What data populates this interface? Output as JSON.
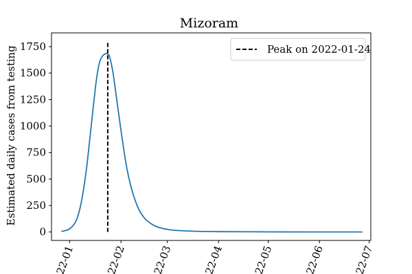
{
  "chart_data": {
    "type": "line",
    "title": "Mizoram",
    "xlabel": "",
    "ylabel": "Estimated daily cases from testing",
    "x_tick_labels": [
      "22-01",
      "22-02",
      "22-03",
      "22-04",
      "22-05",
      "22-06",
      "22-07"
    ],
    "x_tick_dates": [
      "2022-01-01",
      "2022-02-01",
      "2022-03-01",
      "2022-04-01",
      "2022-05-01",
      "2022-06-01",
      "2022-07-01"
    ],
    "y_ticks": [
      0,
      250,
      500,
      750,
      1000,
      1250,
      1500,
      1750
    ],
    "xlim": [
      "2021-12-21",
      "2022-07-02"
    ],
    "ylim": [
      -80,
      1880
    ],
    "grid": false,
    "legend": {
      "position": "top-right",
      "entries": [
        "Peak on 2022-01-24"
      ]
    },
    "series": [
      {
        "color": "#1f77b4",
        "x": [
          "2021-12-27",
          "2022-01-01",
          "2022-01-05",
          "2022-01-08",
          "2022-01-11",
          "2022-01-14",
          "2022-01-17",
          "2022-01-19",
          "2022-01-21",
          "2022-01-23",
          "2022-01-24",
          "2022-01-25",
          "2022-01-27",
          "2022-01-29",
          "2022-02-01",
          "2022-02-04",
          "2022-02-07",
          "2022-02-11",
          "2022-02-15",
          "2022-02-20",
          "2022-02-25",
          "2022-03-04",
          "2022-03-15",
          "2022-04-01",
          "2022-05-01",
          "2022-06-01",
          "2022-06-27"
        ],
        "y": [
          5,
          30,
          110,
          280,
          580,
          1000,
          1420,
          1600,
          1665,
          1685,
          1680,
          1660,
          1520,
          1300,
          960,
          650,
          430,
          240,
          135,
          70,
          38,
          18,
          8,
          3,
          1,
          0,
          0
        ]
      }
    ],
    "annotations": [
      {
        "type": "vline",
        "x": "2022-01-24",
        "y_range": [
          0,
          1790
        ],
        "label": "Peak on 2022-01-24",
        "color": "#000000",
        "style": "dashed"
      }
    ]
  }
}
